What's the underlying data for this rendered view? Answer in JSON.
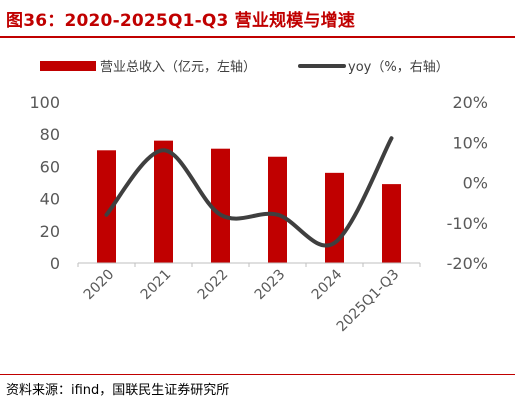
{
  "header": {
    "title": "图36：2020-2025Q1-Q3 营业规模与增速"
  },
  "footer": {
    "source": "资料来源：ifind，国联民生证券研究所"
  },
  "colors": {
    "bar": "#c00000",
    "line": "#3f3f3f",
    "accent": "#c00000",
    "axis": "#bfbfbf",
    "text": "#595959"
  },
  "chart_data": {
    "type": "bar",
    "categories": [
      "2020",
      "2021",
      "2022",
      "2023",
      "2024",
      "2025Q1-Q3"
    ],
    "series": [
      {
        "name": "营业总收入（亿元，左轴）",
        "type": "bar",
        "axis": "left",
        "values": [
          70,
          76,
          71,
          66,
          56,
          49
        ]
      },
      {
        "name": "yoy（%，右轴）",
        "type": "line",
        "axis": "right",
        "smooth": true,
        "values": [
          -8,
          8,
          -8,
          -8,
          -15,
          11
        ]
      }
    ],
    "y_left": {
      "min": 0,
      "max": 100,
      "ticks": [
        "0",
        "20",
        "40",
        "60",
        "80",
        "100"
      ]
    },
    "y_right": {
      "min": -20,
      "max": 20,
      "ticks": [
        "-20%",
        "-10%",
        "0%",
        "10%",
        "20%"
      ]
    },
    "legend_position": "top",
    "grid": false
  }
}
